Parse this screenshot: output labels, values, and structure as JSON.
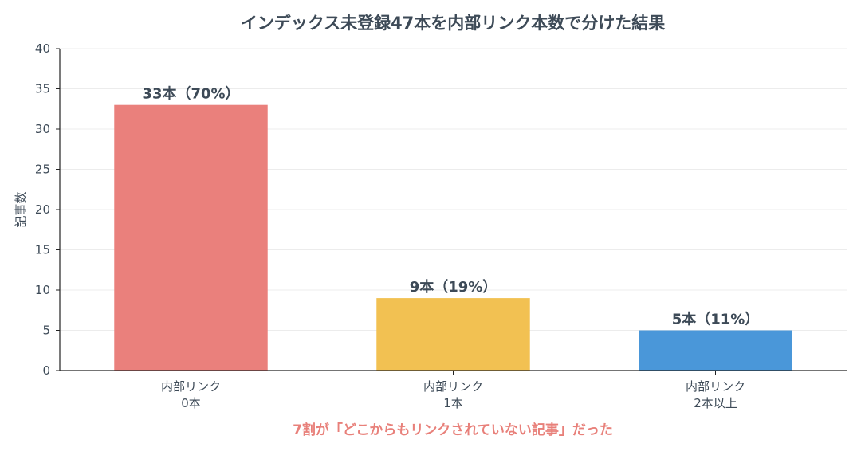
{
  "chart_data": {
    "type": "bar",
    "title": "インデックス未登録47本を内部リンク本数で分けた結果",
    "ylabel": "記事数",
    "xlabel": "",
    "ylim": [
      0,
      40
    ],
    "yticks": [
      0,
      5,
      10,
      15,
      20,
      25,
      30,
      35,
      40
    ],
    "grid": true,
    "categories": [
      [
        "内部リンク",
        "0本"
      ],
      [
        "内部リンク",
        "1本"
      ],
      [
        "内部リンク",
        "2本以上"
      ]
    ],
    "values": [
      33,
      9,
      5
    ],
    "data_labels": [
      "33本（70%）",
      "9本（19%）",
      "5本（11%）"
    ],
    "colors": [
      "#ea807c",
      "#f2c152",
      "#4a97d9"
    ],
    "annotation": "7割が「どこからもリンクされていない記事」だった"
  }
}
